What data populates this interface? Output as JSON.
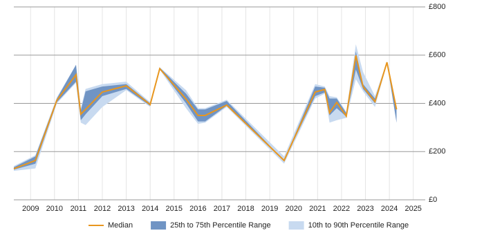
{
  "chart_data": {
    "type": "line",
    "x": [
      2008.3,
      2009.2,
      2010.1,
      2010.9,
      2011.1,
      2011.3,
      2012.0,
      2013.0,
      2014.0,
      2014.4,
      2015.5,
      2016.0,
      2016.3,
      2017.2,
      2019.6,
      2020.9,
      2021.3,
      2021.5,
      2021.8,
      2022.2,
      2022.6,
      2022.9,
      2023.4,
      2023.9,
      2024.3
    ],
    "series": [
      {
        "name": "Median",
        "color": "#e8961e",
        "values": [
          129,
          163,
          413,
          519,
          355,
          375,
          447,
          473,
          395,
          544,
          418,
          350,
          350,
          393,
          163,
          447,
          458,
          361,
          404,
          347,
          599,
          470,
          407,
          570,
          375
        ]
      },
      {
        "name": "25th to 75th Percentile Range",
        "color": "#7094c4",
        "low": [
          125,
          150,
          405,
          490,
          330,
          355,
          430,
          460,
          390,
          544,
          400,
          325,
          325,
          390,
          163,
          430,
          445,
          350,
          380,
          345,
          540,
          460,
          400,
          570,
          320
        ],
        "high": [
          135,
          180,
          420,
          560,
          370,
          450,
          470,
          480,
          400,
          548,
          440,
          375,
          375,
          410,
          163,
          470,
          465,
          420,
          420,
          360,
          615,
          480,
          420,
          570,
          380
        ]
      },
      {
        "name": "10th to 90th Percentile Range",
        "color": "#c8daf0",
        "low": [
          120,
          130,
          400,
          485,
          320,
          310,
          385,
          455,
          385,
          540,
          380,
          315,
          320,
          385,
          150,
          420,
          440,
          320,
          330,
          340,
          500,
          450,
          385,
          565,
          320
        ],
        "high": [
          140,
          185,
          425,
          560,
          380,
          460,
          480,
          490,
          405,
          550,
          455,
          380,
          380,
          415,
          180,
          480,
          470,
          430,
          425,
          365,
          645,
          530,
          430,
          575,
          380
        ]
      }
    ],
    "xlim": [
      2008.3,
      2025.5
    ],
    "xticks": [
      2009,
      2010,
      2011,
      2012,
      2013,
      2014,
      2015,
      2016,
      2017,
      2018,
      2019,
      2020,
      2021,
      2022,
      2023,
      2024,
      2025
    ],
    "ylim": [
      0,
      800
    ],
    "yticks": [
      {
        "value": 0,
        "label": "£0"
      },
      {
        "value": 200,
        "label": "£200"
      },
      {
        "value": 400,
        "label": "£400"
      },
      {
        "value": 600,
        "label": "£600"
      },
      {
        "value": 800,
        "label": "£800"
      }
    ],
    "grid": true,
    "legend": "bottom"
  }
}
